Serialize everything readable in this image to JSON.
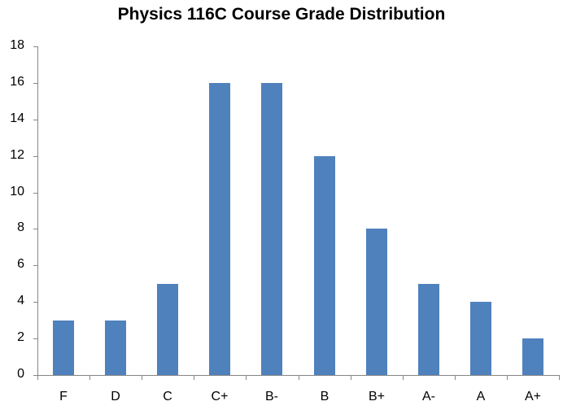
{
  "chart_data": {
    "type": "bar",
    "title": "Physics 116C Course Grade Distribution",
    "xlabel": "",
    "ylabel": "",
    "categories": [
      "F",
      "D",
      "C",
      "C+",
      "B-",
      "B",
      "B+",
      "A-",
      "A",
      "A+"
    ],
    "values": [
      3,
      3,
      5,
      16,
      16,
      12,
      8,
      5,
      4,
      2
    ],
    "ylim": [
      0,
      18
    ],
    "yticks": [
      0,
      2,
      4,
      6,
      8,
      10,
      12,
      14,
      16,
      18
    ],
    "grid": false,
    "legend": null,
    "bar_color": "#4f81bd"
  }
}
